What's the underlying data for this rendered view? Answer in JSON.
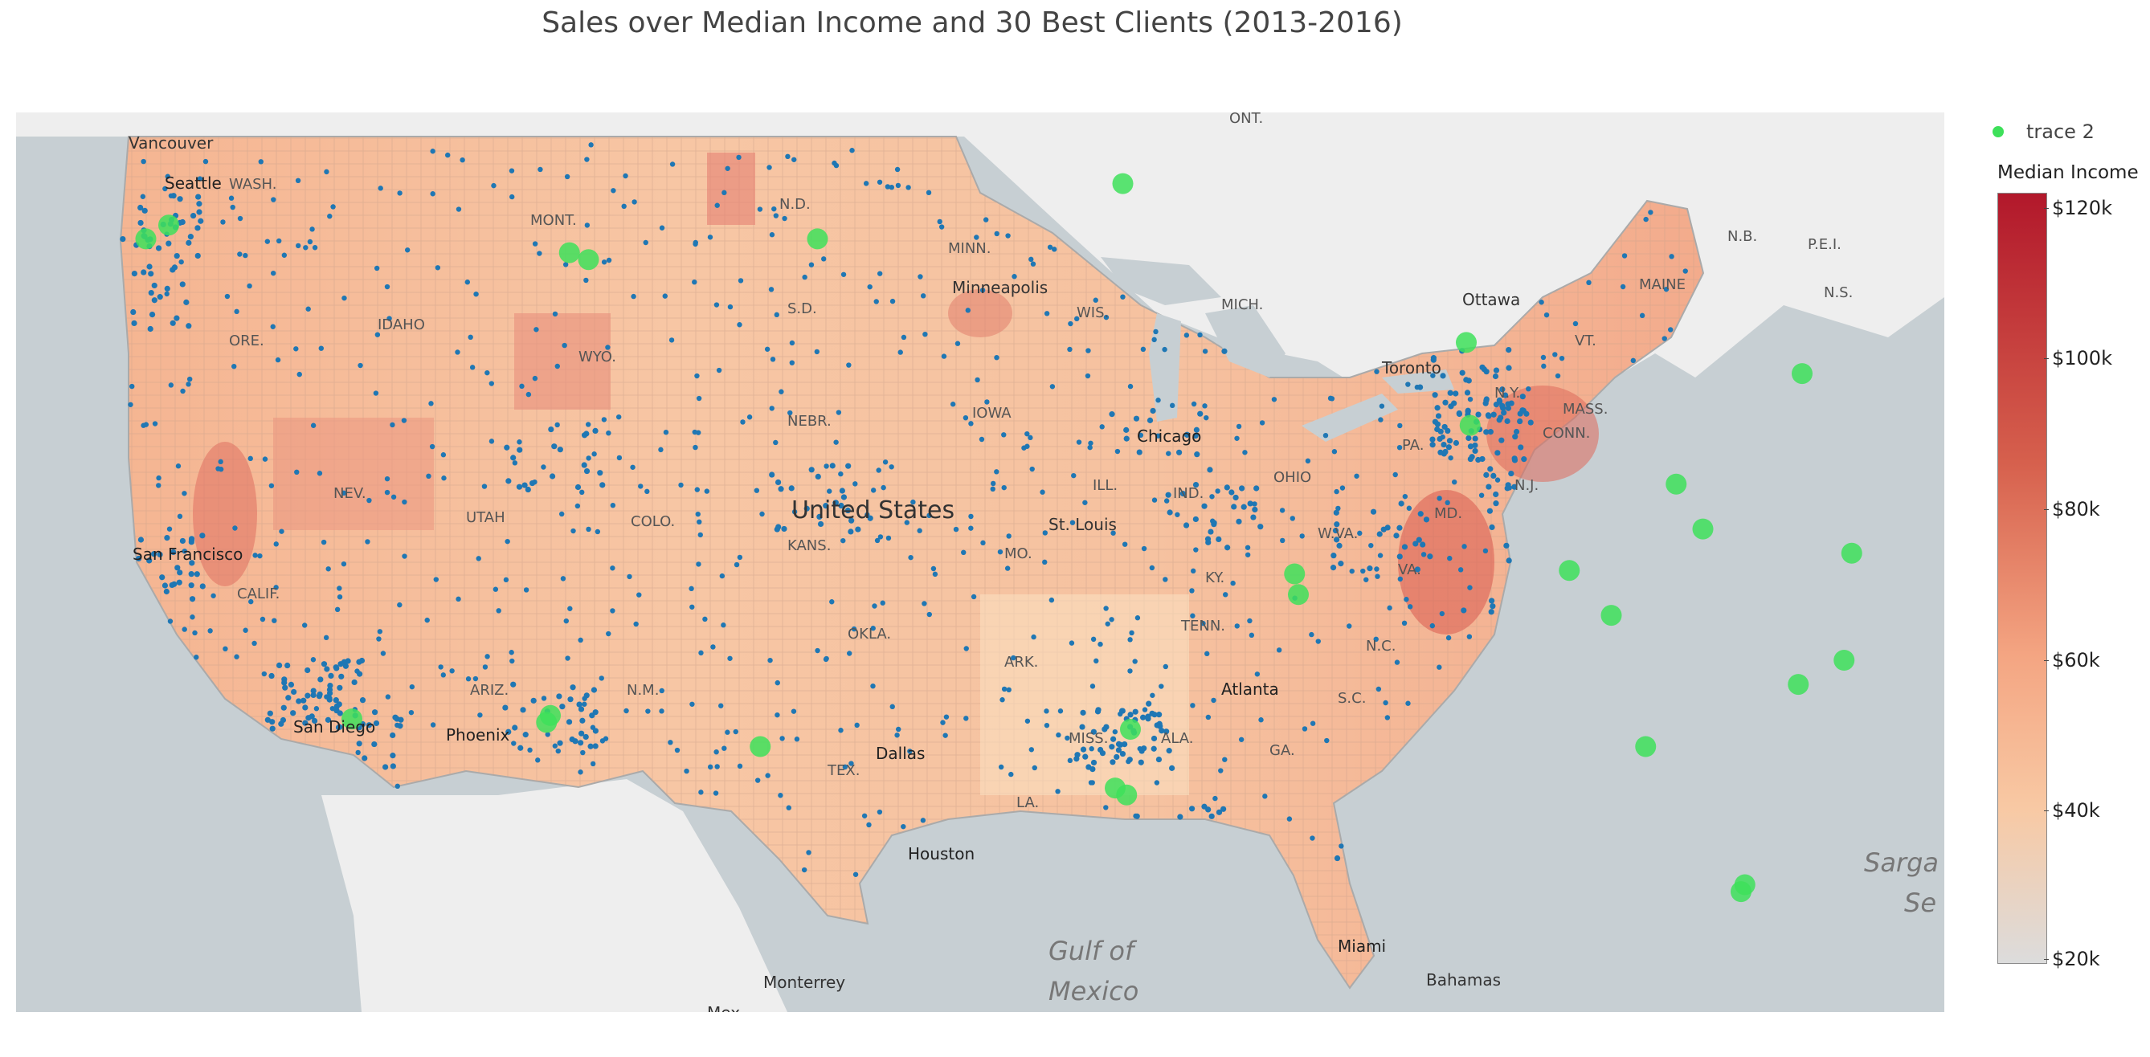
{
  "title": "Sales over Median Income and 30 Best Clients (2013-2016)",
  "legend": {
    "trace_name": "trace 2",
    "trace_color": "#3ee05a"
  },
  "colorbar": {
    "title": "Median Income",
    "ticks": [
      "$120k",
      "$100k",
      "$80k",
      "$60k",
      "$40k",
      "$20k"
    ],
    "colors": [
      "#b2182b",
      "#d6604d",
      "#f4a582",
      "#f8c9a4",
      "#dcdcdc"
    ]
  },
  "map": {
    "water_color": "#c7cfd3",
    "land_color": "#efefef",
    "sales_point_color": "#1f77b4",
    "client_color": "#3ee05a",
    "labels": {
      "vancouver": "Vancouver",
      "seattle": "Seattle",
      "wash": "WASH.",
      "ont": "ONT.",
      "mont": "MONT.",
      "nd": "N.D.",
      "minn": "MINN.",
      "minneapolis": "Minneapolis",
      "ore": "ORE.",
      "idaho": "IDAHO",
      "wyo": "WYO.",
      "sd": "S.D.",
      "wis": "WIS.",
      "mich": "MICH.",
      "ottawa": "Ottawa",
      "toronto": "Toronto",
      "nb": "N.B.",
      "pei": "P.E.I.",
      "ns": "N.S.",
      "maine": "MAINE",
      "vt": "VT.",
      "ny": "N.Y.",
      "mass": "MASS.",
      "conn": "CONN.",
      "nj": "N.J.",
      "pa": "PA.",
      "ohio": "OHIO",
      "ind": "IND.",
      "ill": "ILL.",
      "iowa": "IOWA",
      "nebr": "NEBR.",
      "nev": "NEV.",
      "utah": "UTAH",
      "colo": "COLO.",
      "kans": "KANS.",
      "us": "United States",
      "stlouis": "St. Louis",
      "mo": "MO.",
      "wva": "W.VA.",
      "va": "VA.",
      "md": "MD.",
      "ky": "KY.",
      "tenn": "TENN.",
      "nc": "N.C.",
      "sc": "S.C.",
      "sf": "San Francisco",
      "calif": "CALIF.",
      "okla": "OKLA.",
      "ark": "ARK.",
      "ariz": "ARIZ.",
      "nm": "N.M.",
      "sandiego": "San Diego",
      "phoenix": "Phoenix",
      "dallas": "Dallas",
      "tex": "TEX.",
      "miss": "MISS.",
      "ala": "ALA.",
      "ga": "GA.",
      "atlanta": "Atlanta",
      "la": "LA.",
      "houston": "Houston",
      "gulf1": "Gulf of",
      "gulf2": "Mexico",
      "monterrey": "Monterrey",
      "miami": "Miami",
      "bahamas": "Bahamas",
      "sarga": "Sarga",
      "se": "Se",
      "chicago": "Chicago",
      "mex": "Mex"
    },
    "client_points": [
      [
        -122.6,
        47.2
      ],
      [
        -122.0,
        47.6
      ],
      [
        -111.5,
        46.8
      ],
      [
        -111.0,
        46.6
      ],
      [
        -105.0,
        47.2
      ],
      [
        -97.0,
        48.8
      ],
      [
        -88.0,
        44.2
      ],
      [
        -87.9,
        41.8
      ],
      [
        -79.2,
        43.3
      ],
      [
        -73.9,
        43.6
      ],
      [
        -73.3,
        43.2
      ],
      [
        -82.5,
        40.1
      ],
      [
        -81.8,
        38.8
      ],
      [
        -77.9,
        38.1
      ],
      [
        -85.3,
        37.6
      ],
      [
        -84.2,
        36.3
      ],
      [
        -78.1,
        35.0
      ],
      [
        -79.3,
        34.3
      ],
      [
        -83.3,
        32.5
      ],
      [
        -80.7,
        28.5
      ],
      [
        -80.8,
        28.3
      ],
      [
        -92.5,
        37.5
      ],
      [
        -92.4,
        36.9
      ],
      [
        -96.8,
        33.0
      ],
      [
        -97.2,
        31.3
      ],
      [
        -117.2,
        33.3
      ],
      [
        -112.0,
        33.4
      ],
      [
        -112.1,
        33.2
      ],
      [
        -106.5,
        32.5
      ],
      [
        -96.9,
        31.1
      ]
    ]
  }
}
